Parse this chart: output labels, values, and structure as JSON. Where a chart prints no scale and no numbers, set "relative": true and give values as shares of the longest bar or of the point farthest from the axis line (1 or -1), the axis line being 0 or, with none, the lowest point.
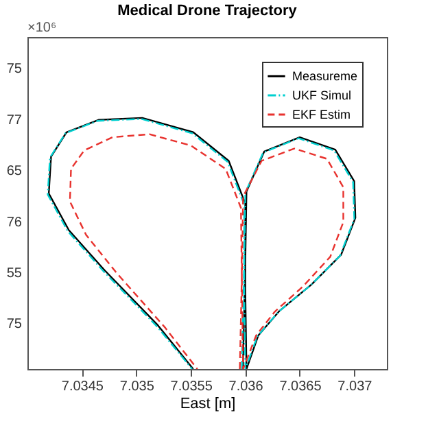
{
  "chart_data": {
    "type": "line",
    "title": "Medical Drone Trajectory",
    "xlabel": "East [m]",
    "annotations": [
      "×10⁶",
      "75",
      "77",
      "65",
      "76",
      "55",
      "75"
    ],
    "xlim": [
      7.034,
      7.0373
    ],
    "xticks": [
      7.0345,
      7.035,
      7.0355,
      7.036,
      7.0365,
      7.037
    ],
    "relative": true,
    "legend": "top right",
    "series": [
      {
        "name": "Measureme",
        "color": "#000000",
        "line_style": "solid",
        "x": [
          7.035978,
          7.036,
          7.036011,
          7.036174,
          7.0365,
          7.036826,
          7.037,
          7.037011,
          7.03688,
          7.036609,
          7.036315,
          7.03612,
          7.036011,
          7.036,
          7.036,
          7.035848,
          7.035522,
          7.035054,
          7.034652,
          7.034359,
          7.034217,
          7.034196,
          7.03438,
          7.034707,
          7.035196,
          7.035522
        ],
        "values": [
          0,
          0.419,
          0.707,
          0.866,
          0.923,
          0.874,
          0.748,
          0.602,
          0.455,
          0.337,
          0.232,
          0.134,
          0,
          0.321,
          0.659,
          0.829,
          0.943,
          1,
          0.992,
          0.943,
          0.846,
          0.699,
          0.553,
          0.394,
          0.175,
          0
        ]
      },
      {
        "name": "UKF Simul",
        "color": "#00d0d0",
        "line_style": "dashdot",
        "x": [
          7.035968,
          7.03599,
          7.036001,
          7.036164,
          7.03649,
          7.036816,
          7.03699,
          7.037001,
          7.03687,
          7.036599,
          7.036305,
          7.03611,
          7.036001,
          7.03599,
          7.03599,
          7.035838,
          7.035512,
          7.035044,
          7.034642,
          7.034349,
          7.034207,
          7.034186,
          7.03437,
          7.034697,
          7.035186,
          7.035512
        ],
        "values": [
          0,
          0.415,
          0.703,
          0.862,
          0.919,
          0.87,
          0.744,
          0.598,
          0.451,
          0.333,
          0.228,
          0.13,
          0,
          0.317,
          0.655,
          0.825,
          0.939,
          0.996,
          0.988,
          0.939,
          0.842,
          0.695,
          0.549,
          0.39,
          0.171,
          0
        ]
      },
      {
        "name": "EKF Estim",
        "color": "#e8322e",
        "line_style": "dashed",
        "x": [
          7.03595,
          7.03597,
          7.03598,
          7.03615,
          7.03645,
          7.03675,
          7.0369,
          7.0369,
          7.03678,
          7.03653,
          7.03627,
          7.0361,
          7.03598,
          7.03597,
          7.03596,
          7.03582,
          7.0355,
          7.03512,
          7.03478,
          7.03452,
          7.0344,
          7.03439,
          7.03454,
          7.03482,
          7.03526,
          7.03556
        ],
        "values": [
          0,
          0.402,
          0.687,
          0.829,
          0.878,
          0.837,
          0.724,
          0.585,
          0.447,
          0.329,
          0.228,
          0.134,
          0,
          0.317,
          0.642,
          0.797,
          0.89,
          0.935,
          0.923,
          0.87,
          0.797,
          0.667,
          0.533,
          0.382,
          0.167,
          0
        ]
      }
    ]
  }
}
